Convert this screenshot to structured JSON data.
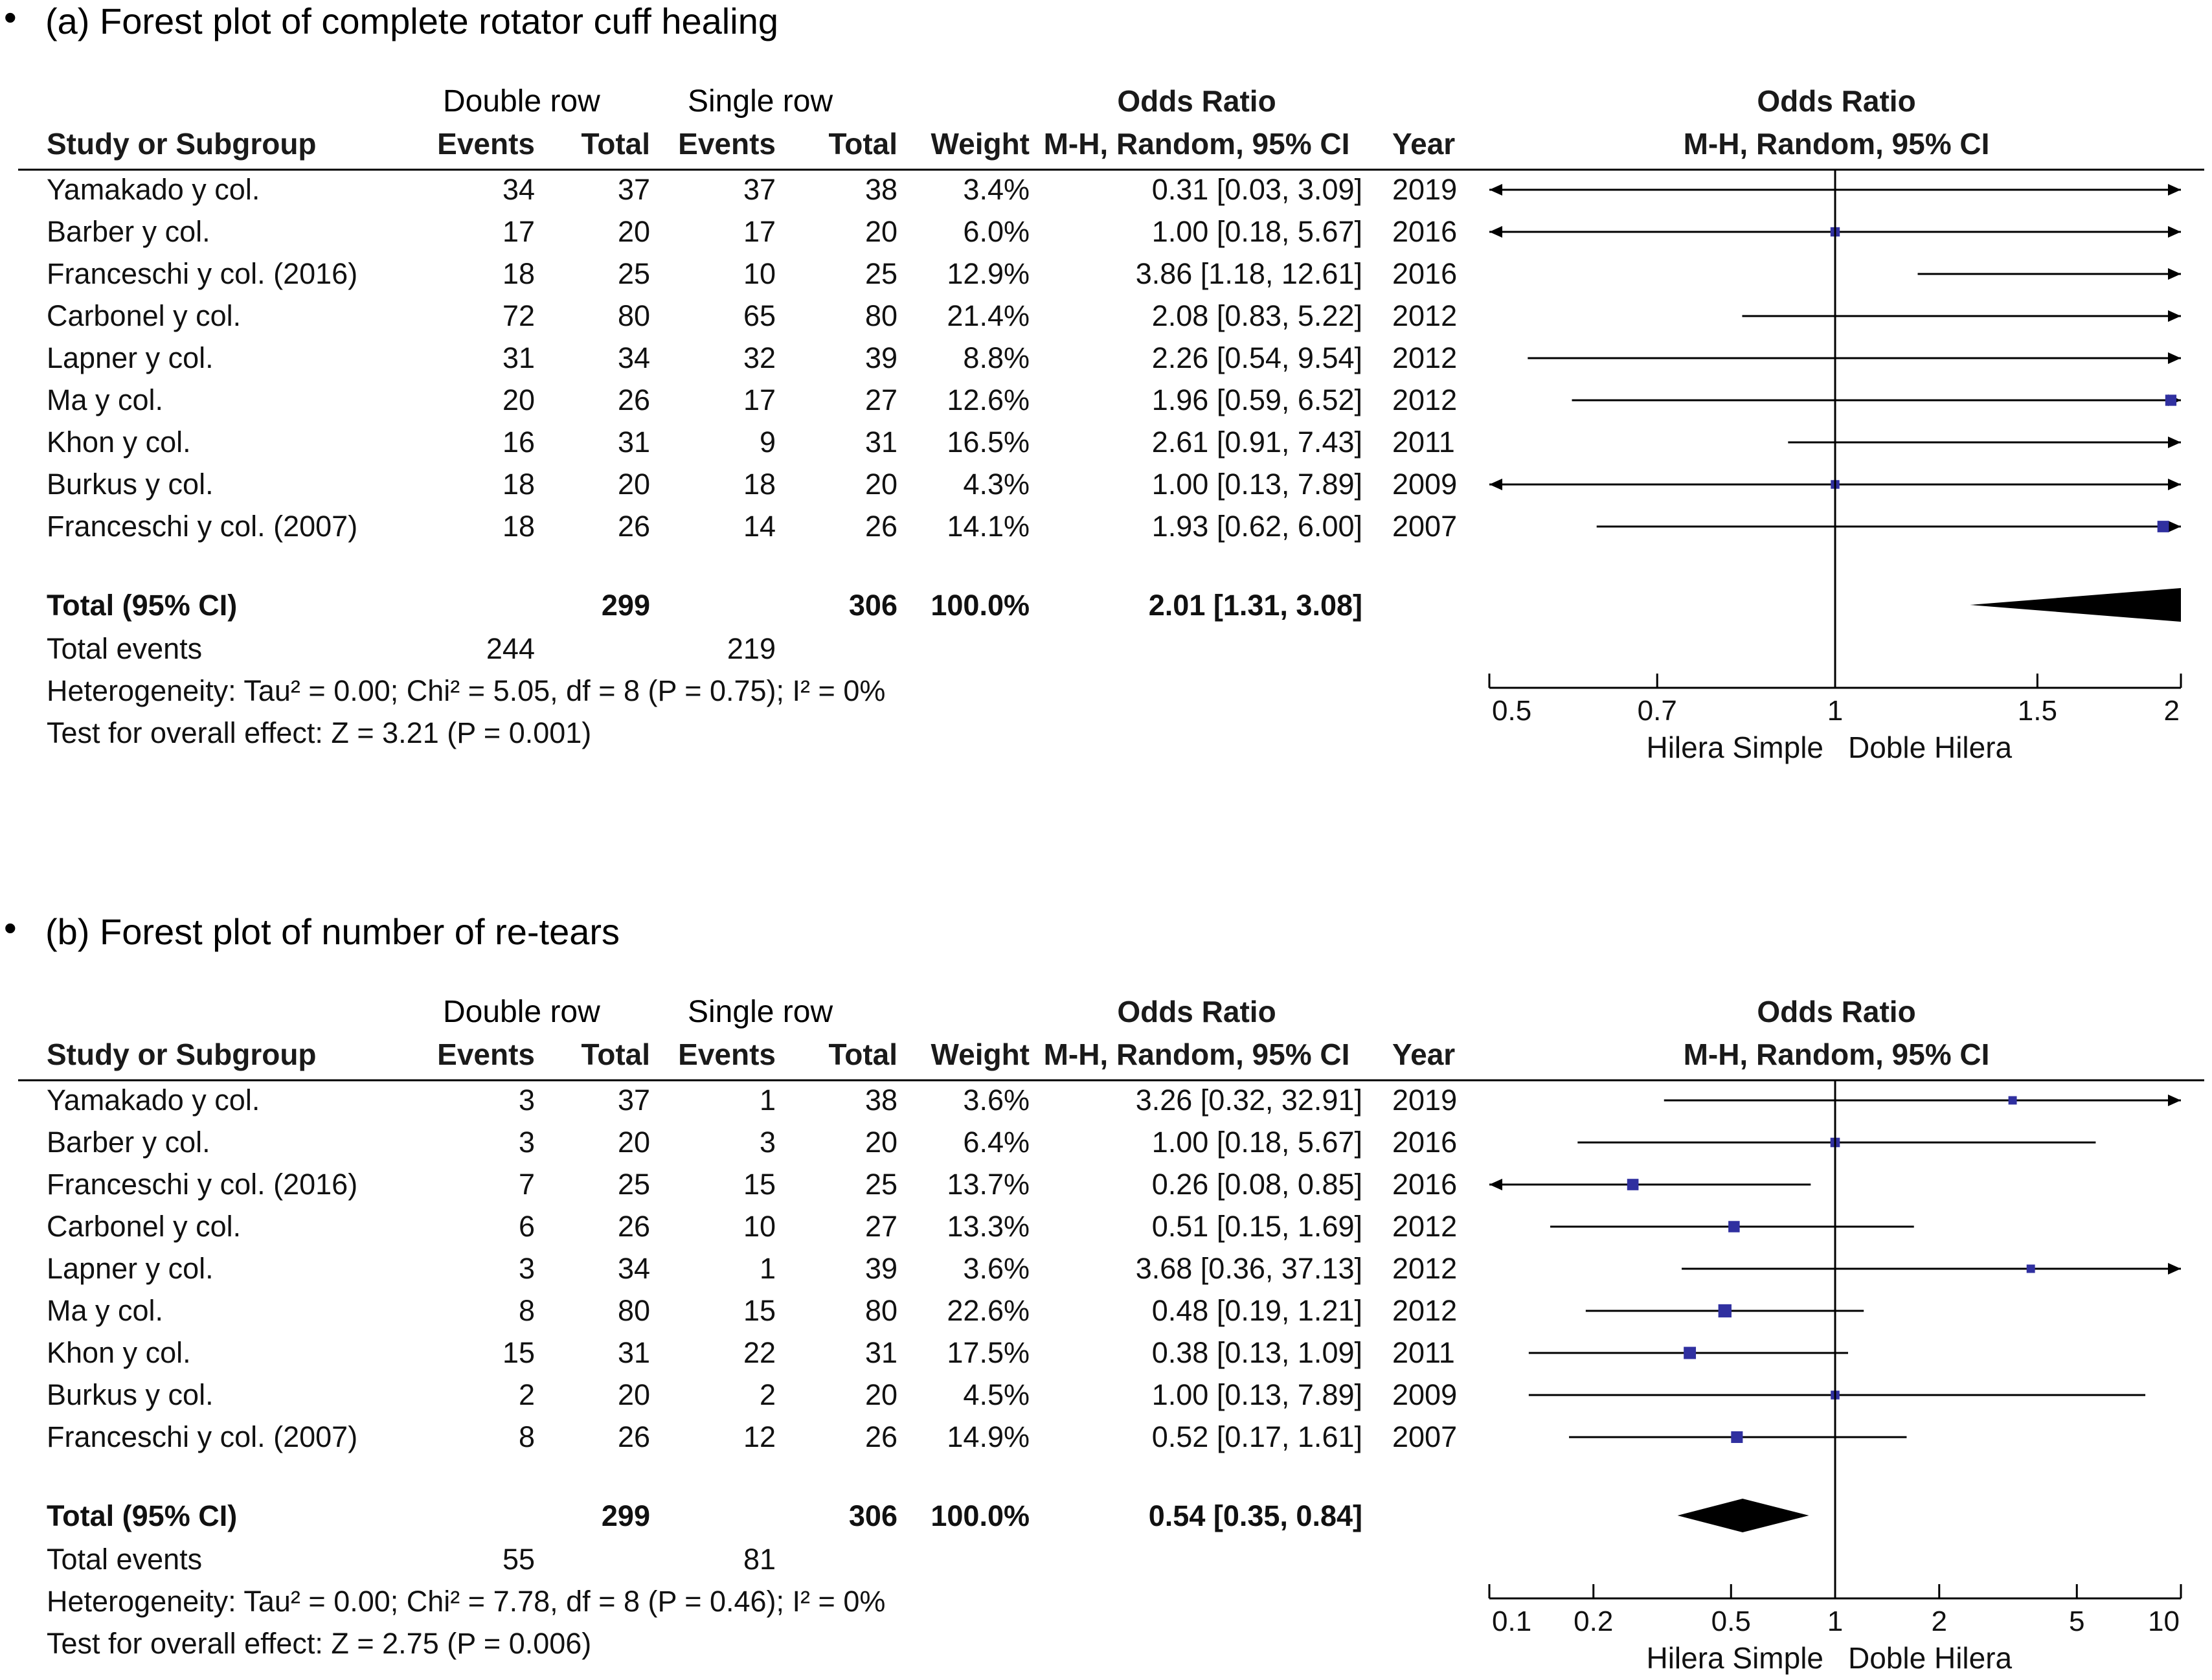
{
  "columns": {
    "double_row": "Double row",
    "single_row": "Single row",
    "study_or_subgroup": "Study or Subgroup",
    "events": "Events",
    "total": "Total",
    "weight": "Weight",
    "or_title": "Odds Ratio",
    "or_method": "M-H, Random, 95% CI",
    "year": "Year"
  },
  "plots": [
    {
      "caption": "(a) Forest plot of complete rotator cuff healing",
      "bullet": "•",
      "rows": [
        {
          "study": "Yamakado y col.",
          "de": "34",
          "dt": "37",
          "se": "37",
          "st": "38",
          "weight": "3.4%",
          "ci": "0.31 [0.03, 3.09]",
          "year": "2019"
        },
        {
          "study": "Barber y col.",
          "de": "17",
          "dt": "20",
          "se": "17",
          "st": "20",
          "weight": "6.0%",
          "ci": "1.00 [0.18, 5.67]",
          "year": "2016"
        },
        {
          "study": "Franceschi y col. (2016)",
          "de": "18",
          "dt": "25",
          "se": "10",
          "st": "25",
          "weight": "12.9%",
          "ci": "3.86 [1.18, 12.61]",
          "year": "2016"
        },
        {
          "study": "Carbonel y col.",
          "de": "72",
          "dt": "80",
          "se": "65",
          "st": "80",
          "weight": "21.4%",
          "ci": "2.08 [0.83, 5.22]",
          "year": "2012"
        },
        {
          "study": "Lapner y col.",
          "de": "31",
          "dt": "34",
          "se": "32",
          "st": "39",
          "weight": "8.8%",
          "ci": "2.26 [0.54, 9.54]",
          "year": "2012"
        },
        {
          "study": "Ma y col.",
          "de": "20",
          "dt": "26",
          "se": "17",
          "st": "27",
          "weight": "12.6%",
          "ci": "1.96 [0.59, 6.52]",
          "year": "2012"
        },
        {
          "study": "Khon y col.",
          "de": "16",
          "dt": "31",
          "se": "9",
          "st": "31",
          "weight": "16.5%",
          "ci": "2.61 [0.91, 7.43]",
          "year": "2011"
        },
        {
          "study": "Burkus y col.",
          "de": "18",
          "dt": "20",
          "se": "18",
          "st": "20",
          "weight": "4.3%",
          "ci": "1.00 [0.13, 7.89]",
          "year": "2009"
        },
        {
          "study": "Franceschi y col. (2007)",
          "de": "18",
          "dt": "26",
          "se": "14",
          "st": "26",
          "weight": "14.1%",
          "ci": "1.93 [0.62, 6.00]",
          "year": "2007"
        }
      ],
      "total": {
        "label": "Total (95% CI)",
        "dt": "299",
        "st": "306",
        "weight": "100.0%",
        "ci": "2.01 [1.31, 3.08]"
      },
      "total_events": {
        "label": "Total events",
        "de": "244",
        "se": "219"
      },
      "heterogeneity": "Heterogeneity: Tau² = 0.00; Chi² = 5.05, df = 8 (P = 0.75); I² = 0%",
      "overall_effect": "Test for overall effect: Z = 3.21 (P = 0.001)",
      "ticks": [
        "0.5",
        "0.7",
        "1",
        "1.5",
        "2"
      ],
      "favours_left": "Hilera Simple",
      "favours_right": "Doble Hilera"
    },
    {
      "caption": "(b) Forest plot of number of re-tears",
      "bullet": "•",
      "rows": [
        {
          "study": "Yamakado y col.",
          "de": "3",
          "dt": "37",
          "se": "1",
          "st": "38",
          "weight": "3.6%",
          "ci": "3.26 [0.32, 32.91]",
          "year": "2019"
        },
        {
          "study": "Barber y col.",
          "de": "3",
          "dt": "20",
          "se": "3",
          "st": "20",
          "weight": "6.4%",
          "ci": "1.00 [0.18, 5.67]",
          "year": "2016"
        },
        {
          "study": "Franceschi y col. (2016)",
          "de": "7",
          "dt": "25",
          "se": "15",
          "st": "25",
          "weight": "13.7%",
          "ci": "0.26 [0.08, 0.85]",
          "year": "2016"
        },
        {
          "study": "Carbonel y col.",
          "de": "6",
          "dt": "26",
          "se": "10",
          "st": "27",
          "weight": "13.3%",
          "ci": "0.51 [0.15, 1.69]",
          "year": "2012"
        },
        {
          "study": "Lapner y col.",
          "de": "3",
          "dt": "34",
          "se": "1",
          "st": "39",
          "weight": "3.6%",
          "ci": "3.68 [0.36, 37.13]",
          "year": "2012"
        },
        {
          "study": "Ma y col.",
          "de": "8",
          "dt": "80",
          "se": "15",
          "st": "80",
          "weight": "22.6%",
          "ci": "0.48 [0.19, 1.21]",
          "year": "2012"
        },
        {
          "study": "Khon y col.",
          "de": "15",
          "dt": "31",
          "se": "22",
          "st": "31",
          "weight": "17.5%",
          "ci": "0.38 [0.13, 1.09]",
          "year": "2011"
        },
        {
          "study": "Burkus y col.",
          "de": "2",
          "dt": "20",
          "se": "2",
          "st": "20",
          "weight": "4.5%",
          "ci": "1.00 [0.13, 7.89]",
          "year": "2009"
        },
        {
          "study": "Franceschi y col. (2007)",
          "de": "8",
          "dt": "26",
          "se": "12",
          "st": "26",
          "weight": "14.9%",
          "ci": "0.52 [0.17, 1.61]",
          "year": "2007"
        }
      ],
      "total": {
        "label": "Total (95% CI)",
        "dt": "299",
        "st": "306",
        "weight": "100.0%",
        "ci": "0.54 [0.35, 0.84]"
      },
      "total_events": {
        "label": "Total events",
        "de": "55",
        "se": "81"
      },
      "heterogeneity": "Heterogeneity: Tau² = 0.00; Chi² = 7.78, df = 8 (P = 0.46); I² = 0%",
      "overall_effect": "Test for overall effect: Z = 2.75 (P = 0.006)",
      "ticks": [
        "0.1",
        "0.2",
        "0.5",
        "1",
        "2",
        "5",
        "10"
      ],
      "favours_left": "Hilera Simple",
      "favours_right": "Doble Hilera"
    }
  ],
  "colors": {
    "point": "#3030a0",
    "line": "#000000",
    "axis": "#000000"
  },
  "chart_data": [
    {
      "type": "forest",
      "title": "(a) Forest plot of complete rotator cuff healing",
      "scale": "log",
      "xlim": [
        0.5,
        2
      ],
      "ticks": [
        0.5,
        0.7,
        1,
        1.5,
        2
      ],
      "xlabel_left": "Hilera Simple",
      "xlabel_right": "Doble Hilera",
      "studies": [
        {
          "name": "Yamakado y col.",
          "or": 0.31,
          "lo": 0.03,
          "hi": 3.09,
          "weight": 3.4
        },
        {
          "name": "Barber y col.",
          "or": 1.0,
          "lo": 0.18,
          "hi": 5.67,
          "weight": 6.0
        },
        {
          "name": "Franceschi y col. (2016)",
          "or": 3.86,
          "lo": 1.18,
          "hi": 12.61,
          "weight": 12.9
        },
        {
          "name": "Carbonel y col.",
          "or": 2.08,
          "lo": 0.83,
          "hi": 5.22,
          "weight": 21.4
        },
        {
          "name": "Lapner y col.",
          "or": 2.26,
          "lo": 0.54,
          "hi": 9.54,
          "weight": 8.8
        },
        {
          "name": "Ma y col.",
          "or": 1.96,
          "lo": 0.59,
          "hi": 6.52,
          "weight": 12.6
        },
        {
          "name": "Khon y col.",
          "or": 2.61,
          "lo": 0.91,
          "hi": 7.43,
          "weight": 16.5
        },
        {
          "name": "Burkus y col.",
          "or": 1.0,
          "lo": 0.13,
          "hi": 7.89,
          "weight": 4.3
        },
        {
          "name": "Franceschi y col. (2007)",
          "or": 1.93,
          "lo": 0.62,
          "hi": 6.0,
          "weight": 14.1
        }
      ],
      "pooled": {
        "or": 2.01,
        "lo": 1.31,
        "hi": 3.08
      }
    },
    {
      "type": "forest",
      "title": "(b) Forest plot of number of re-tears",
      "scale": "log",
      "xlim": [
        0.1,
        10
      ],
      "ticks": [
        0.1,
        0.2,
        0.5,
        1,
        2,
        5,
        10
      ],
      "xlabel_left": "Hilera Simple",
      "xlabel_right": "Doble Hilera",
      "studies": [
        {
          "name": "Yamakado y col.",
          "or": 3.26,
          "lo": 0.32,
          "hi": 32.91,
          "weight": 3.6
        },
        {
          "name": "Barber y col.",
          "or": 1.0,
          "lo": 0.18,
          "hi": 5.67,
          "weight": 6.4
        },
        {
          "name": "Franceschi y col. (2016)",
          "or": 0.26,
          "lo": 0.08,
          "hi": 0.85,
          "weight": 13.7
        },
        {
          "name": "Carbonel y col.",
          "or": 0.51,
          "lo": 0.15,
          "hi": 1.69,
          "weight": 13.3
        },
        {
          "name": "Lapner y col.",
          "or": 3.68,
          "lo": 0.36,
          "hi": 37.13,
          "weight": 3.6
        },
        {
          "name": "Ma y col.",
          "or": 0.48,
          "lo": 0.19,
          "hi": 1.21,
          "weight": 22.6
        },
        {
          "name": "Khon y col.",
          "or": 0.38,
          "lo": 0.13,
          "hi": 1.09,
          "weight": 17.5
        },
        {
          "name": "Burkus y col.",
          "or": 1.0,
          "lo": 0.13,
          "hi": 7.89,
          "weight": 4.5
        },
        {
          "name": "Franceschi y col. (2007)",
          "or": 0.52,
          "lo": 0.17,
          "hi": 1.61,
          "weight": 14.9
        }
      ],
      "pooled": {
        "or": 0.54,
        "lo": 0.35,
        "hi": 0.84
      }
    }
  ]
}
